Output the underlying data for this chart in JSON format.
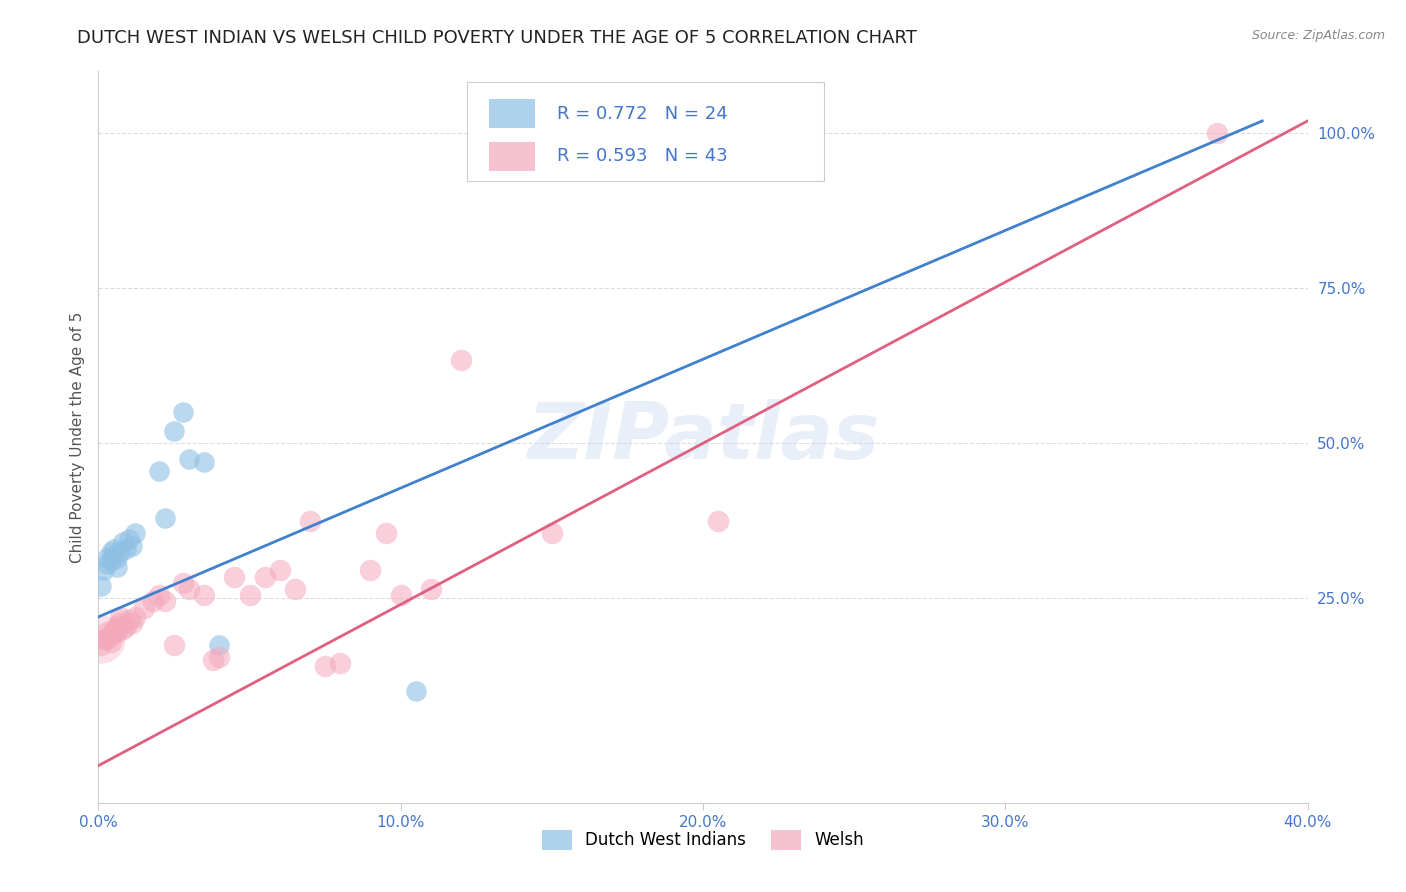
{
  "title": "DUTCH WEST INDIAN VS WELSH CHILD POVERTY UNDER THE AGE OF 5 CORRELATION CHART",
  "source": "Source: ZipAtlas.com",
  "ylabel": "Child Poverty Under the Age of 5",
  "xlim": [
    0.0,
    0.4
  ],
  "ylim": [
    -0.08,
    1.1
  ],
  "xtick_labels": [
    "0.0%",
    "",
    "10.0%",
    "",
    "20.0%",
    "",
    "30.0%",
    "",
    "40.0%"
  ],
  "xtick_vals": [
    0.0,
    0.05,
    0.1,
    0.15,
    0.2,
    0.25,
    0.3,
    0.35,
    0.4
  ],
  "ytick_labels": [
    "25.0%",
    "50.0%",
    "75.0%",
    "100.0%"
  ],
  "ytick_vals": [
    0.25,
    0.5,
    0.75,
    1.0
  ],
  "watermark_text": "ZIPatlas",
  "legend_entries": [
    {
      "label": "Dutch West Indians",
      "R": 0.772,
      "N": 24
    },
    {
      "label": "Welsh",
      "R": 0.593,
      "N": 43
    }
  ],
  "blue_scatter": [
    [
      0.001,
      0.27
    ],
    [
      0.002,
      0.295
    ],
    [
      0.003,
      0.305
    ],
    [
      0.003,
      0.315
    ],
    [
      0.004,
      0.31
    ],
    [
      0.004,
      0.325
    ],
    [
      0.005,
      0.32
    ],
    [
      0.005,
      0.33
    ],
    [
      0.006,
      0.3
    ],
    [
      0.006,
      0.315
    ],
    [
      0.007,
      0.325
    ],
    [
      0.008,
      0.34
    ],
    [
      0.009,
      0.33
    ],
    [
      0.01,
      0.345
    ],
    [
      0.011,
      0.335
    ],
    [
      0.012,
      0.355
    ],
    [
      0.02,
      0.455
    ],
    [
      0.022,
      0.38
    ],
    [
      0.025,
      0.52
    ],
    [
      0.028,
      0.55
    ],
    [
      0.03,
      0.475
    ],
    [
      0.035,
      0.47
    ],
    [
      0.04,
      0.175
    ],
    [
      0.105,
      0.1
    ]
  ],
  "pink_scatter": [
    [
      0.001,
      0.175
    ],
    [
      0.002,
      0.185
    ],
    [
      0.003,
      0.185
    ],
    [
      0.003,
      0.195
    ],
    [
      0.004,
      0.18
    ],
    [
      0.004,
      0.19
    ],
    [
      0.005,
      0.195
    ],
    [
      0.005,
      0.2
    ],
    [
      0.006,
      0.195
    ],
    [
      0.006,
      0.205
    ],
    [
      0.007,
      0.21
    ],
    [
      0.007,
      0.22
    ],
    [
      0.008,
      0.2
    ],
    [
      0.009,
      0.205
    ],
    [
      0.01,
      0.215
    ],
    [
      0.011,
      0.21
    ],
    [
      0.012,
      0.22
    ],
    [
      0.015,
      0.235
    ],
    [
      0.018,
      0.245
    ],
    [
      0.02,
      0.255
    ],
    [
      0.022,
      0.245
    ],
    [
      0.025,
      0.175
    ],
    [
      0.028,
      0.275
    ],
    [
      0.03,
      0.265
    ],
    [
      0.035,
      0.255
    ],
    [
      0.038,
      0.15
    ],
    [
      0.04,
      0.155
    ],
    [
      0.045,
      0.285
    ],
    [
      0.05,
      0.255
    ],
    [
      0.055,
      0.285
    ],
    [
      0.06,
      0.295
    ],
    [
      0.065,
      0.265
    ],
    [
      0.07,
      0.375
    ],
    [
      0.075,
      0.14
    ],
    [
      0.08,
      0.145
    ],
    [
      0.09,
      0.295
    ],
    [
      0.095,
      0.355
    ],
    [
      0.1,
      0.255
    ],
    [
      0.11,
      0.265
    ],
    [
      0.12,
      0.635
    ],
    [
      0.15,
      0.355
    ],
    [
      0.205,
      0.375
    ],
    [
      0.37,
      1.0
    ]
  ],
  "blue_line_x": [
    0.0,
    0.385
  ],
  "blue_line_y": [
    0.22,
    1.02
  ],
  "pink_line_x": [
    0.0,
    0.4
  ],
  "pink_line_y": [
    -0.02,
    1.02
  ],
  "blue_dot_color": "#8ec0e4",
  "pink_dot_color": "#f4a8bc",
  "blue_line_color": "#4080cc",
  "pink_line_color": "#e06080",
  "tick_color": "#4477cc",
  "background_color": "#ffffff",
  "grid_color": "#dddddd",
  "title_fontsize": 13,
  "axis_label_fontsize": 11,
  "tick_fontsize": 11,
  "legend_fontsize": 13,
  "source_fontsize": 9
}
